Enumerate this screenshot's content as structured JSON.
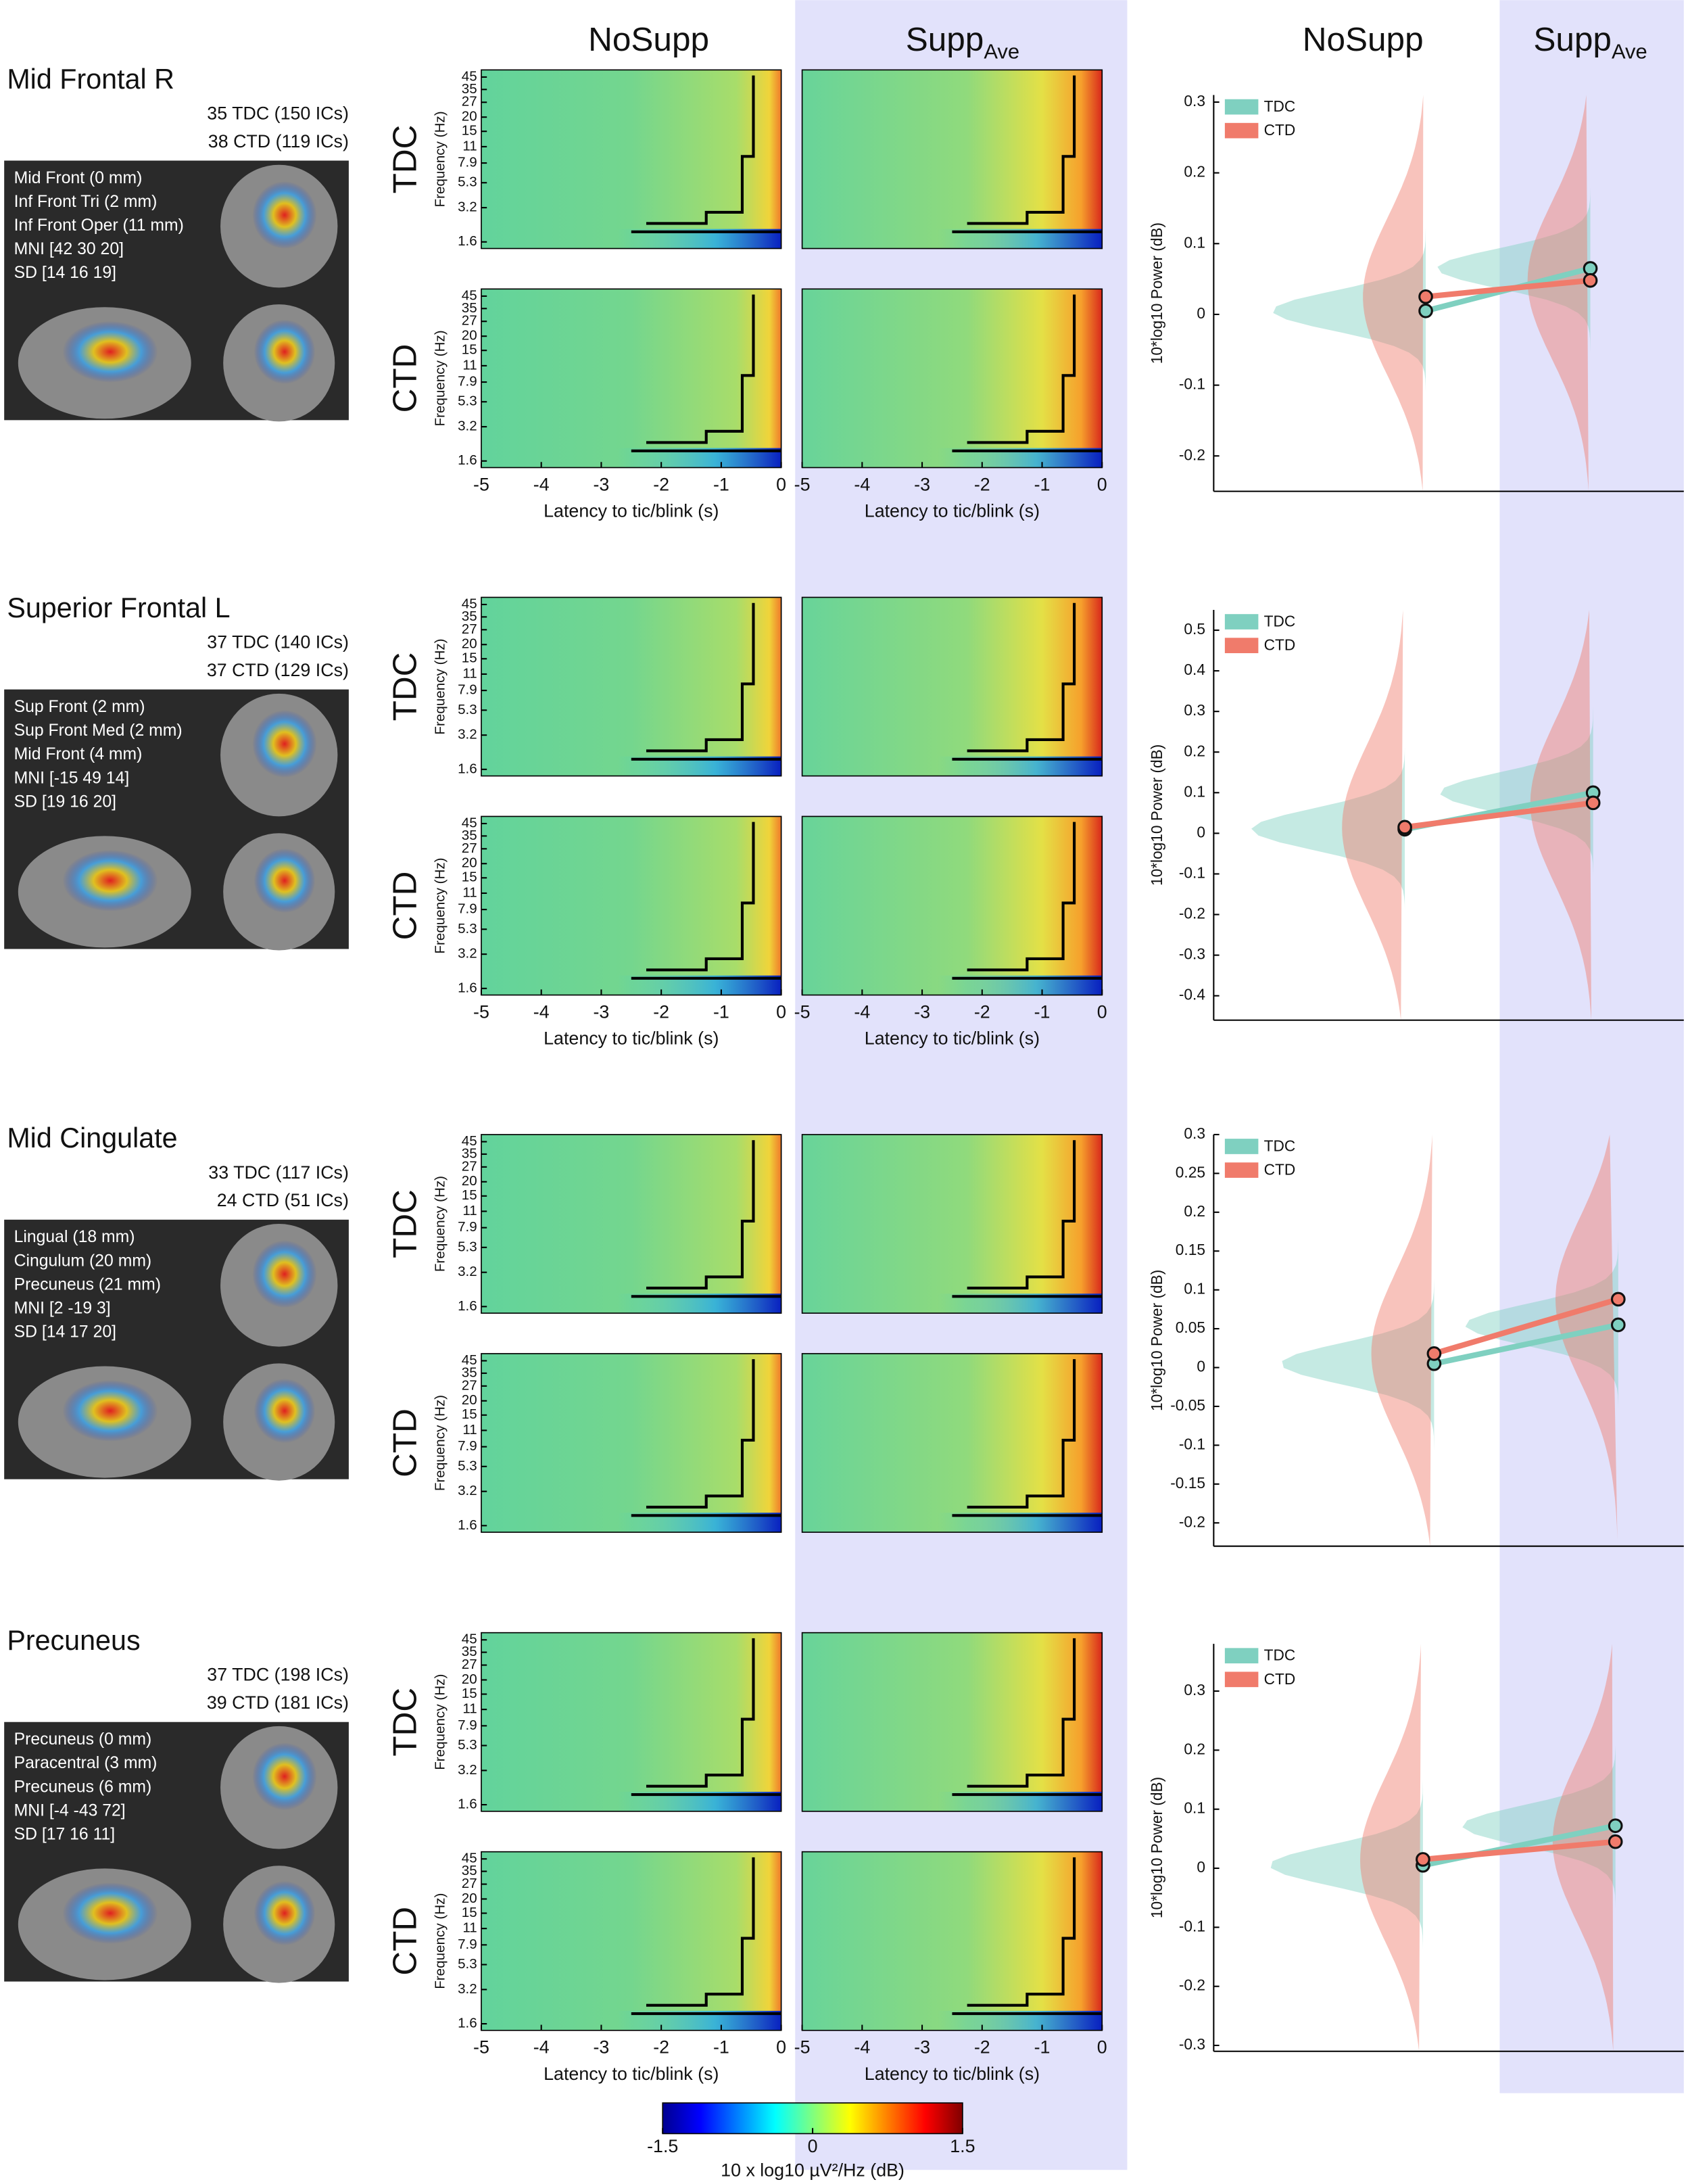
{
  "column_headers": [
    {
      "text": "NoSupp"
    },
    {
      "text": "Supp",
      "sub": "Ave"
    },
    {
      "text": "NoSupp"
    },
    {
      "text": "Supp",
      "sub": "Ave"
    }
  ],
  "regions": [
    {
      "name": "Mid Frontal R",
      "counts": [
        "35 TDC (150 ICs)",
        "38 CTD (119 ICs)"
      ],
      "info": [
        "Mid Front (0 mm)",
        "Inf Front Tri (2 mm)",
        "Inf Front Oper (11 mm)",
        "MNI [42 30 20]",
        "SD [14 16 19]"
      ]
    },
    {
      "name": "Superior Frontal L",
      "counts": [
        "37 TDC (140 ICs)",
        "37 CTD (129 ICs)"
      ],
      "info": [
        "Sup Front (2 mm)",
        "Sup Front Med (2 mm)",
        "Mid Front (4 mm)",
        "MNI [-15 49 14]",
        "SD [19 16 20]"
      ]
    },
    {
      "name": "Mid Cingulate",
      "counts": [
        "33 TDC (117 ICs)",
        "24 CTD (51 ICs)"
      ],
      "info": [
        "Lingual (18 mm)",
        "Cingulum (20 mm)",
        "Precuneus (21 mm)",
        "MNI [2 -19 3]",
        "SD [14 17 20]"
      ]
    },
    {
      "name": "Precuneus",
      "counts": [
        "37 TDC (198 ICs)",
        "39 CTD (181 ICs)"
      ],
      "info": [
        "Precuneus (0 mm)",
        "Paracentral (3 mm)",
        "Precuneus (6 mm)",
        "MNI [-4 -43 72]",
        "SD [17 16 11]"
      ]
    }
  ],
  "chart_data": [
    {
      "type": "heatmap",
      "group": "TDC",
      "ylabel": "Frequency (Hz)",
      "yscale": "log",
      "ylim": [
        1.4,
        52
      ],
      "yticks": [
        1.6,
        3.2,
        5.3,
        7.9,
        11,
        15,
        20,
        27,
        35,
        45
      ],
      "xlim": [
        -5,
        0
      ]
    },
    {
      "type": "heatmap",
      "group": "CTD",
      "ylabel": "Frequency (Hz)",
      "yscale": "log",
      "ylim": [
        1.4,
        52
      ],
      "yticks": [
        1.6,
        3.2,
        5.3,
        7.9,
        11,
        15,
        20,
        27,
        35,
        45
      ],
      "xlim": [
        -5,
        0
      ],
      "xticks": [
        -5,
        -4,
        -3,
        -2,
        -1,
        0
      ],
      "xlabel": "Latency to tic/blink (s)"
    },
    {
      "type": "raincloud",
      "ylabel": "10*log10 Power (dB)",
      "ylim": [
        -0.25,
        0.31
      ],
      "yticks": [
        -0.2,
        -0.1,
        0,
        0.1,
        0.2,
        0.3
      ],
      "series": [
        {
          "name": "TDC",
          "color": "#7fd0c0",
          "values": [
            0.005,
            0.065
          ]
        },
        {
          "name": "CTD",
          "color": "#f07b6b",
          "values": [
            0.025,
            0.048
          ]
        }
      ]
    },
    {
      "type": "heatmap",
      "group": "TDC",
      "ylabel": "Frequency (Hz)",
      "yscale": "log",
      "ylim": [
        1.4,
        52
      ],
      "yticks": [
        1.6,
        3.2,
        5.3,
        7.9,
        11,
        15,
        20,
        27,
        35,
        45
      ],
      "xlim": [
        -5,
        0
      ]
    },
    {
      "type": "heatmap",
      "group": "CTD",
      "ylabel": "Frequency (Hz)",
      "yscale": "log",
      "ylim": [
        1.4,
        52
      ],
      "yticks": [
        1.6,
        3.2,
        5.3,
        7.9,
        11,
        15,
        20,
        27,
        35,
        45
      ],
      "xlim": [
        -5,
        0
      ],
      "xticks": [
        -5,
        -4,
        -3,
        -2,
        -1,
        0
      ],
      "xlabel": "Latency to tic/blink (s)"
    },
    {
      "type": "raincloud",
      "ylabel": "10*log10 Power (dB)",
      "ylim": [
        -0.46,
        0.55
      ],
      "yticks": [
        -0.4,
        -0.3,
        -0.2,
        -0.1,
        0,
        0.1,
        0.2,
        0.3,
        0.4,
        0.5
      ],
      "series": [
        {
          "name": "TDC",
          "color": "#7fd0c0",
          "values": [
            0.01,
            0.1
          ]
        },
        {
          "name": "CTD",
          "color": "#f07b6b",
          "values": [
            0.015,
            0.075
          ]
        }
      ]
    },
    {
      "type": "heatmap",
      "group": "TDC",
      "ylabel": "Frequency (Hz)",
      "yscale": "log",
      "ylim": [
        1.4,
        52
      ],
      "yticks": [
        1.6,
        3.2,
        5.3,
        7.9,
        11,
        15,
        20,
        27,
        35,
        45
      ],
      "xlim": [
        -5,
        0
      ]
    },
    {
      "type": "heatmap",
      "group": "CTD",
      "ylabel": "Frequency (Hz)",
      "yscale": "log",
      "ylim": [
        1.4,
        52
      ],
      "yticks": [
        1.6,
        3.2,
        5.3,
        7.9,
        11,
        15,
        20,
        27,
        35,
        45
      ],
      "xlim": [
        -5,
        0
      ]
    },
    {
      "type": "raincloud",
      "ylabel": "10*log10 Power (dB)",
      "ylim": [
        -0.23,
        0.3
      ],
      "yticks": [
        -0.2,
        -0.15,
        -0.1,
        -0.05,
        0,
        0.05,
        0.1,
        0.15,
        0.2,
        0.25,
        0.3
      ],
      "series": [
        {
          "name": "TDC",
          "color": "#7fd0c0",
          "values": [
            0.005,
            0.055
          ]
        },
        {
          "name": "CTD",
          "color": "#f07b6b",
          "values": [
            0.018,
            0.088
          ]
        }
      ]
    },
    {
      "type": "heatmap",
      "group": "TDC",
      "ylabel": "Frequency (Hz)",
      "yscale": "log",
      "ylim": [
        1.4,
        52
      ],
      "yticks": [
        1.6,
        3.2,
        5.3,
        7.9,
        11,
        15,
        20,
        27,
        35,
        45
      ],
      "xlim": [
        -5,
        0
      ]
    },
    {
      "type": "heatmap",
      "group": "CTD",
      "ylabel": "Frequency (Hz)",
      "yscale": "log",
      "ylim": [
        1.4,
        52
      ],
      "yticks": [
        1.6,
        3.2,
        5.3,
        7.9,
        11,
        15,
        20,
        27,
        35,
        45
      ],
      "xlim": [
        -5,
        0
      ],
      "xticks": [
        -5,
        -4,
        -3,
        -2,
        -1,
        0
      ],
      "xlabel": "Latency to tic/blink (s)"
    },
    {
      "type": "raincloud",
      "ylabel": "10*log10 Power (dB)",
      "ylim": [
        -0.31,
        0.38
      ],
      "yticks": [
        -0.3,
        -0.2,
        -0.1,
        0,
        0.1,
        0.2,
        0.3
      ],
      "series": [
        {
          "name": "TDC",
          "color": "#7fd0c0",
          "values": [
            0.005,
            0.072
          ]
        },
        {
          "name": "CTD",
          "color": "#f07b6b",
          "values": [
            0.015,
            0.045
          ]
        }
      ]
    },
    {
      "type": "colorbar",
      "xlabel": "10 x log10 µV²/Hz  (dB)",
      "xlim": [
        -1.5,
        1.5
      ],
      "xticks": [
        -1.5,
        0,
        1.5
      ]
    }
  ]
}
